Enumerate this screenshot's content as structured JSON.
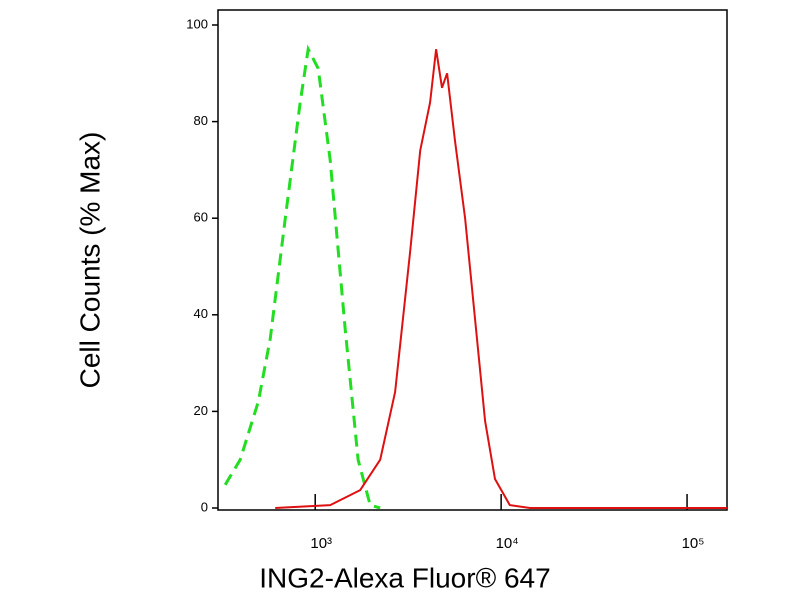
{
  "chart_data": {
    "type": "line",
    "x_label": "ING2-Alexa Fluor® 647",
    "y_label": "Cell Counts (% Max)",
    "log_x": true,
    "xlim": [
      300,
      164000
    ],
    "xticks": [
      {
        "value": 1000,
        "label": "10³"
      },
      {
        "value": 10000,
        "label": "10⁴"
      },
      {
        "value": 100000,
        "label": "10⁵"
      }
    ],
    "ylim": [
      0,
      100
    ],
    "yticks": [
      0,
      20,
      40,
      60,
      80,
      100
    ],
    "series": [
      {
        "color": "#22dd22",
        "dash": true,
        "x": [
          328,
          395,
          494,
          573,
          690,
          830,
          917,
          1038,
          1204,
          1450,
          1701,
          1976,
          2237
        ],
        "values": [
          4.8,
          10,
          22,
          35,
          60,
          84,
          95,
          91,
          72,
          37,
          10,
          0.6,
          0
        ]
      },
      {
        "color": "#dd1111",
        "dash": false,
        "x": [
          609,
          1204,
          1745,
          2237,
          2690,
          3240,
          3670,
          4150,
          4470,
          4810,
          5120,
          5650,
          6400,
          7240,
          8200,
          9270,
          11130,
          14300,
          164000
        ],
        "values": [
          0,
          0.6,
          3.7,
          10,
          24,
          53,
          74,
          84,
          95,
          87,
          90,
          76,
          60,
          39,
          18,
          6,
          0.6,
          0,
          0
        ]
      }
    ]
  }
}
